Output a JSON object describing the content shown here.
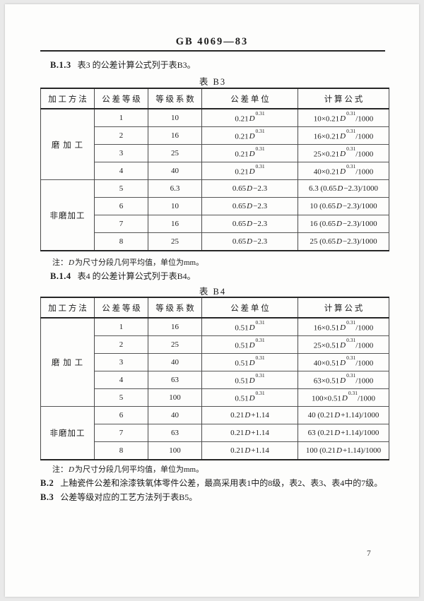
{
  "page": {
    "standard_code": "GB 4069—83",
    "page_number": "7"
  },
  "colors": {
    "paper": "#fdfdfc",
    "frame": "#e9e9e9",
    "ink": "#1c1c1c",
    "rule": "#262626"
  },
  "paragraphs": {
    "b13": {
      "label": "B.1.3",
      "text": "表3 的公差计算公式列于表B3。"
    },
    "b14": {
      "label": "B.1.4",
      "text": "表4 的公差计算公式列于表B4。"
    },
    "b2": {
      "label": "B.2",
      "text": "上釉瓷件公差和涂漆铁氧体零件公差，最高采用表1中的8级，表2、表3、表4中的7级。"
    },
    "b3": {
      "label": "B.3",
      "text": "公差等级对应的工艺方法列于表B5。"
    }
  },
  "tables": [
    {
      "title": "表 B3",
      "columns": [
        "加 工 方 法",
        "公 差 等 级",
        "等 级 系 数",
        "公 差 单 位",
        "计 算 公 式"
      ],
      "note": {
        "a": "注：",
        "d": "D",
        "b": "为尺寸分段几何平均值，单位为mm。"
      },
      "groups": [
        {
          "method": "磨 加 工",
          "rows": [
            {
              "grade": "1",
              "coeff": "10",
              "unit": [
                "0.21",
                "D",
                "0.31",
                ""
              ],
              "formula": [
                "10×0.21",
                "D",
                "0.31",
                "/1000"
              ]
            },
            {
              "grade": "2",
              "coeff": "16",
              "unit": [
                "0.21",
                "D",
                "0.31",
                ""
              ],
              "formula": [
                "16×0.21",
                "D",
                "0.31",
                "/1000"
              ]
            },
            {
              "grade": "3",
              "coeff": "25",
              "unit": [
                "0.21",
                "D",
                "0.31",
                ""
              ],
              "formula": [
                "25×0.21",
                "D",
                "0.31",
                "/1000"
              ]
            },
            {
              "grade": "4",
              "coeff": "40",
              "unit": [
                "0.21",
                "D",
                "0.31",
                ""
              ],
              "formula": [
                "40×0.21",
                "D",
                "0.31",
                "/1000"
              ]
            }
          ]
        },
        {
          "method": "非磨加工",
          "rows": [
            {
              "grade": "5",
              "coeff": "6.3",
              "unit": [
                "0.65",
                "D",
                "",
                "−2.3"
              ],
              "formula": [
                "6.3 (0.65",
                "D",
                "",
                "−2.3)/1000"
              ]
            },
            {
              "grade": "6",
              "coeff": "10",
              "unit": [
                "0.65",
                "D",
                "",
                "−2.3"
              ],
              "formula": [
                "10 (0.65",
                "D",
                "",
                "−2.3)/1000"
              ]
            },
            {
              "grade": "7",
              "coeff": "16",
              "unit": [
                "0.65",
                "D",
                "",
                "−2.3"
              ],
              "formula": [
                "16 (0.65",
                "D",
                "",
                "−2.3)/1000"
              ]
            },
            {
              "grade": "8",
              "coeff": "25",
              "unit": [
                "0.65",
                "D",
                "",
                "−2.3"
              ],
              "formula": [
                "25 (0.65",
                "D",
                "",
                "−2.3)/1000"
              ]
            }
          ]
        }
      ]
    },
    {
      "title": "表 B4",
      "columns": [
        "加 工 方 法",
        "公 差 等 级",
        "等 级 系 数",
        "公 差 单 位",
        "计 算 公 式"
      ],
      "note": {
        "a": "注：",
        "d": "D",
        "b": "为尺寸分段几何平均值，单位为mm。"
      },
      "groups": [
        {
          "method": "磨 加 工",
          "rows": [
            {
              "grade": "1",
              "coeff": "16",
              "unit": [
                "0.51",
                "D",
                "0.31",
                ""
              ],
              "formula": [
                "16×0.51",
                "D",
                "0.31",
                "/1000"
              ]
            },
            {
              "grade": "2",
              "coeff": "25",
              "unit": [
                "0.51",
                "D",
                "0.31",
                ""
              ],
              "formula": [
                "25×0.51",
                "D",
                "0.31",
                "/1000"
              ]
            },
            {
              "grade": "3",
              "coeff": "40",
              "unit": [
                "0.51",
                "D",
                "0.31",
                ""
              ],
              "formula": [
                "40×0.51",
                "D",
                "0.31",
                "/1000"
              ]
            },
            {
              "grade": "4",
              "coeff": "63",
              "unit": [
                "0.51",
                "D",
                "0.31",
                ""
              ],
              "formula": [
                "63×0.51",
                "D",
                "0.31",
                "/1000"
              ]
            },
            {
              "grade": "5",
              "coeff": "100",
              "unit": [
                "0.51",
                "D",
                "0.31",
                ""
              ],
              "formula": [
                "100×0.51",
                "D",
                "0.31",
                "/1000"
              ]
            }
          ]
        },
        {
          "method": "非磨加工",
          "rows": [
            {
              "grade": "6",
              "coeff": "40",
              "unit": [
                "0.21",
                "D",
                "",
                "+1.14"
              ],
              "formula": [
                "40 (0.21",
                "D",
                "",
                "+1.14)/1000"
              ]
            },
            {
              "grade": "7",
              "coeff": "63",
              "unit": [
                "0.21",
                "D",
                "",
                "+1.14"
              ],
              "formula": [
                "63 (0.21",
                "D",
                "",
                "+1.14)/1000"
              ]
            },
            {
              "grade": "8",
              "coeff": "100",
              "unit": [
                "0.21",
                "D",
                "",
                "+1.14"
              ],
              "formula": [
                "100 (0.21",
                "D",
                "",
                "+1.14)/1000"
              ]
            }
          ]
        }
      ]
    }
  ]
}
